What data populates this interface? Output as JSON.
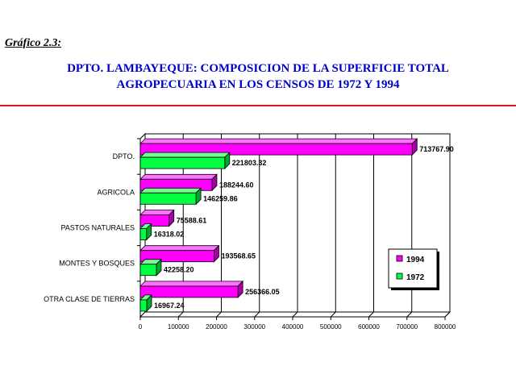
{
  "figure_label": "Gráfico 2.3:",
  "title_line1": "DPTO. LAMBAYEQUE: COMPOSICION DE LA SUPERFICIE TOTAL",
  "title_line2": "AGROPECUARIA EN LOS CENSOS DE 1972 Y 1994",
  "colors": {
    "title": "#0000cc",
    "rule": "#e01818",
    "s1994": "#ff00ff",
    "s1972": "#00ff40"
  },
  "chart_data": {
    "type": "bar",
    "orientation": "horizontal",
    "categories": [
      "DPTO.",
      "AGRICOLA",
      "PASTOS NATURALES",
      "MONTES Y BOSQUES",
      "OTRA CLASE DE TIERRAS"
    ],
    "series": [
      {
        "name": "1994",
        "values": [
          713767.9,
          188244.6,
          75588.61,
          193568.65,
          256366.05
        ],
        "labels": [
          "713767.90",
          "188244.60",
          "75588.61",
          "193568.65",
          "256366.05"
        ]
      },
      {
        "name": "1972",
        "values": [
          221803.32,
          146259.86,
          16318.02,
          42258.2,
          16967.24
        ],
        "labels": [
          "221803.32",
          "146259.86",
          "16318.02",
          "42258.20",
          "16967.24"
        ]
      }
    ],
    "xlim": [
      0,
      800000
    ],
    "xticks": [
      "0",
      "100000",
      "200000",
      "300000",
      "400000",
      "500000",
      "600000",
      "700000",
      "800000"
    ],
    "grid": "vertical",
    "legend_position": "right"
  }
}
